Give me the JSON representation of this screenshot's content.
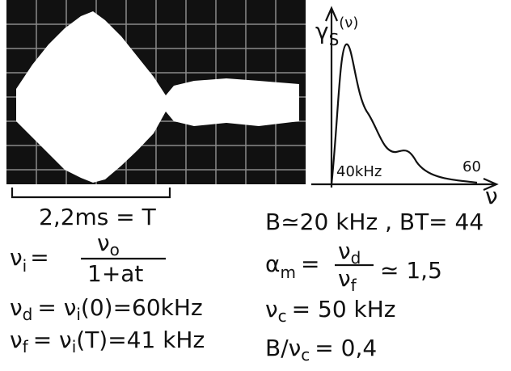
{
  "oscilloscope": {
    "scale_label": "2,2ms = T"
  },
  "spectrum": {
    "axis_label": [
      "γ",
      "S",
      "(ν)"
    ],
    "marker_low": "40kHz",
    "marker_high": "60",
    "x_label": "ν"
  },
  "formulas_left": [
    [
      "ν",
      "i",
      "=",
      "ν",
      "o",
      "1+at"
    ],
    [
      "ν",
      "d",
      "= ν",
      "i",
      "(0)=60kHz"
    ],
    [
      "ν",
      "f",
      "= ν",
      "i",
      "(T)=41 kHz"
    ]
  ],
  "formulas_right": [
    [
      "B≃20 kHz , BT= 44"
    ],
    [
      "α",
      "m",
      "=",
      "ν",
      "d",
      "ν",
      "f",
      "≃ 1,5"
    ],
    [
      "ν",
      "c",
      "= 50 kHz"
    ],
    [
      "B/ν",
      "c",
      "= 0,4"
    ]
  ]
}
